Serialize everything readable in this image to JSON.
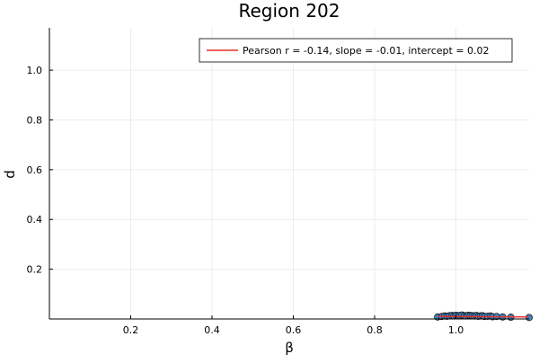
{
  "chart_data": {
    "type": "scatter",
    "title": "Region 202",
    "xlabel": "β",
    "ylabel": "d",
    "xlim": [
      0.0,
      1.18
    ],
    "ylim": [
      0.0,
      1.17
    ],
    "x_ticks": [
      0.2,
      0.4,
      0.6,
      0.8,
      1.0
    ],
    "x_tick_labels": [
      "0.2",
      "0.4",
      "0.6",
      "0.8",
      "1.0"
    ],
    "y_ticks": [
      0.2,
      0.4,
      0.6,
      0.8,
      1.0
    ],
    "y_tick_labels": [
      "0.2",
      "0.4",
      "0.6",
      "0.8",
      "1.0"
    ],
    "grid": true,
    "legend_position": "top-right",
    "colors": {
      "points": "#3a87c8",
      "point_edge": "#1a1a1a",
      "fit_line": "#e8302a",
      "grid": "#ececec",
      "axis": "#000000"
    },
    "series": [
      {
        "kind": "points",
        "x": [
          0.955,
          0.965,
          0.972,
          0.978,
          0.984,
          0.99,
          0.995,
          1.0,
          1.005,
          1.01,
          1.015,
          1.02,
          1.025,
          1.03,
          1.035,
          1.04,
          1.045,
          1.05,
          1.055,
          1.06,
          1.065,
          1.07,
          1.078,
          1.085,
          1.09,
          1.1,
          1.115,
          1.135,
          1.18
        ],
        "y": [
          0.008,
          0.01,
          0.012,
          0.011,
          0.013,
          0.014,
          0.012,
          0.015,
          0.013,
          0.014,
          0.016,
          0.013,
          0.012,
          0.015,
          0.014,
          0.013,
          0.012,
          0.014,
          0.011,
          0.012,
          0.013,
          0.01,
          0.011,
          0.012,
          0.009,
          0.01,
          0.008,
          0.007,
          0.006
        ]
      },
      {
        "kind": "line",
        "name": "Pearson r = -0.14, slope = -0.01, intercept = 0.02",
        "x": [
          0.955,
          1.18
        ],
        "y": [
          0.0105,
          0.0082
        ]
      }
    ]
  }
}
